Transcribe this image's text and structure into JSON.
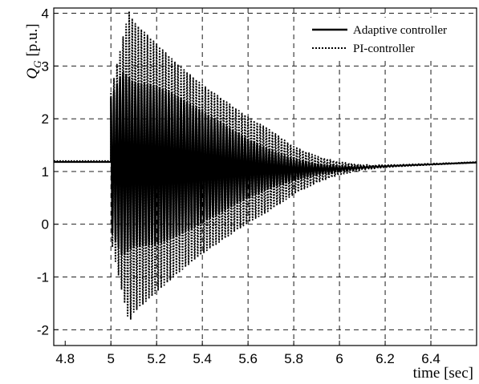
{
  "chart_data": {
    "type": "line",
    "title": "",
    "xlabel": "time [sec]",
    "ylabel_symbol": "Q",
    "ylabel_subscript": "G",
    "ylabel_unit": "[p.u.]",
    "xlim": [
      4.75,
      6.6
    ],
    "ylim": [
      -2.3,
      4.1
    ],
    "x_ticks": [
      4.8,
      5,
      5.2,
      5.4,
      5.6,
      5.8,
      6,
      6.2,
      6.4
    ],
    "x_tick_labels": [
      "4.8",
      "5",
      "5.2",
      "5.4",
      "5.6",
      "5.8",
      "6",
      "6.2",
      "6.4"
    ],
    "y_ticks": [
      -2,
      -1,
      0,
      1,
      2,
      3,
      4
    ],
    "y_tick_labels": [
      "-2",
      "-1",
      "0",
      "1",
      "2",
      "3",
      "4"
    ],
    "grid": true,
    "legend_position": "top-right",
    "series": [
      {
        "name": "Adaptive controller",
        "style": "solid",
        "color": "#000000",
        "steady_before": 1.18,
        "disturbance_time": 5.0,
        "osc_frequency_hz": 75,
        "envelope": [
          [
            5.0,
            1.25
          ],
          [
            5.05,
            1.75
          ],
          [
            5.1,
            1.55
          ],
          [
            5.2,
            1.5
          ],
          [
            5.3,
            1.3
          ],
          [
            5.4,
            1.05
          ],
          [
            5.5,
            0.8
          ],
          [
            5.6,
            0.55
          ],
          [
            5.7,
            0.35
          ],
          [
            5.8,
            0.2
          ],
          [
            5.9,
            0.1
          ],
          [
            6.0,
            0.05
          ],
          [
            6.1,
            0.02
          ],
          [
            6.2,
            0.01
          ],
          [
            6.6,
            0.0
          ]
        ],
        "mean": [
          [
            5.0,
            1.15
          ],
          [
            5.3,
            1.1
          ],
          [
            5.8,
            1.03
          ],
          [
            6.0,
            1.05
          ],
          [
            6.2,
            1.1
          ],
          [
            6.6,
            1.17
          ]
        ]
      },
      {
        "name": "PI-controller",
        "style": "dotted",
        "color": "#000000",
        "steady_before": 1.2,
        "disturbance_time": 5.0,
        "osc_frequency_hz": 75,
        "envelope": [
          [
            5.0,
            1.4
          ],
          [
            5.05,
            2.4
          ],
          [
            5.08,
            2.95
          ],
          [
            5.1,
            2.75
          ],
          [
            5.2,
            2.35
          ],
          [
            5.3,
            1.95
          ],
          [
            5.4,
            1.6
          ],
          [
            5.5,
            1.3
          ],
          [
            5.6,
            1.0
          ],
          [
            5.7,
            0.75
          ],
          [
            5.8,
            0.45
          ],
          [
            5.9,
            0.25
          ],
          [
            6.0,
            0.12
          ],
          [
            6.1,
            0.05
          ],
          [
            6.2,
            0.02
          ],
          [
            6.6,
            0.0
          ]
        ],
        "mean": [
          [
            5.0,
            1.1
          ],
          [
            5.3,
            1.05
          ],
          [
            5.8,
            1.02
          ],
          [
            6.0,
            1.06
          ],
          [
            6.2,
            1.1
          ],
          [
            6.6,
            1.18
          ]
        ]
      }
    ]
  }
}
